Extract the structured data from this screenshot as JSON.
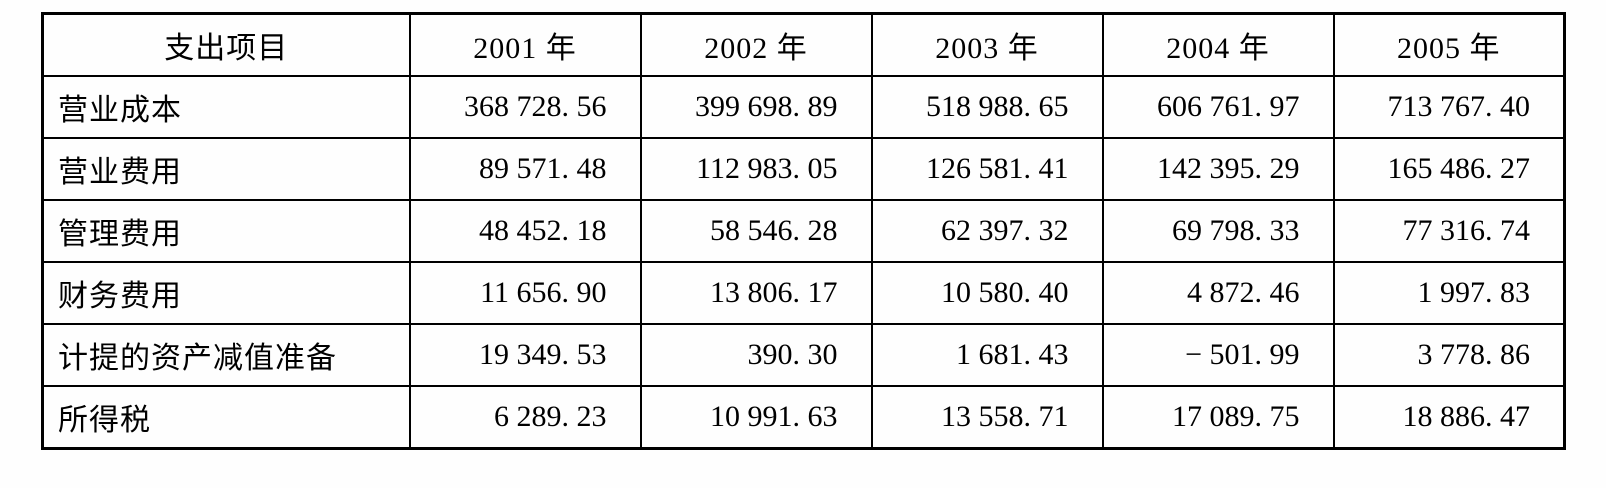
{
  "table": {
    "header": {
      "item_label": "支出项目",
      "years": [
        "2001 年",
        "2002 年",
        "2003 年",
        "2004 年",
        "2005 年"
      ]
    },
    "rows": [
      {
        "label": "营业成本",
        "values": [
          "368 728. 56",
          "399 698. 89",
          "518 988. 65",
          "606 761. 97",
          "713 767. 40"
        ]
      },
      {
        "label": "营业费用",
        "values": [
          "89 571. 48",
          "112 983. 05",
          "126 581. 41",
          "142 395. 29",
          "165 486. 27"
        ]
      },
      {
        "label": "管理费用",
        "values": [
          "48 452. 18",
          "58 546. 28",
          "62 397. 32",
          "69 798. 33",
          "77 316. 74"
        ]
      },
      {
        "label": "财务费用",
        "values": [
          "11 656. 90",
          "13 806. 17",
          "10 580. 40",
          "4 872. 46",
          "1 997. 83"
        ]
      },
      {
        "label": "计提的资产减值准备",
        "values": [
          "19 349. 53",
          "390. 30",
          "1 681. 43",
          "− 501. 99",
          "3 778. 86"
        ]
      },
      {
        "label": "所得税",
        "values": [
          "6 289. 23",
          "10 991. 63",
          "13 558. 71",
          "17 089. 75",
          "18 886. 47"
        ]
      }
    ]
  },
  "chart_data": {
    "type": "table",
    "title": "",
    "columns": [
      "支出项目",
      "2001 年",
      "2002 年",
      "2003 年",
      "2004 年",
      "2005 年"
    ],
    "series": [
      {
        "name": "营业成本",
        "values": [
          368728.56,
          399698.89,
          518988.65,
          606761.97,
          713767.4
        ]
      },
      {
        "name": "营业费用",
        "values": [
          89571.48,
          112983.05,
          126581.41,
          142395.29,
          165486.27
        ]
      },
      {
        "name": "管理费用",
        "values": [
          48452.18,
          58546.28,
          62397.32,
          69798.33,
          77316.74
        ]
      },
      {
        "name": "财务费用",
        "values": [
          11656.9,
          13806.17,
          10580.4,
          4872.46,
          1997.83
        ]
      },
      {
        "name": "计提的资产减值准备",
        "values": [
          19349.53,
          390.3,
          1681.43,
          -501.99,
          3778.86
        ]
      },
      {
        "name": "所得税",
        "values": [
          6289.23,
          10991.63,
          13558.71,
          17089.75,
          18886.47
        ]
      }
    ]
  },
  "colors": {
    "border": "#000000",
    "text": "#000000",
    "background": "#fefefe"
  }
}
